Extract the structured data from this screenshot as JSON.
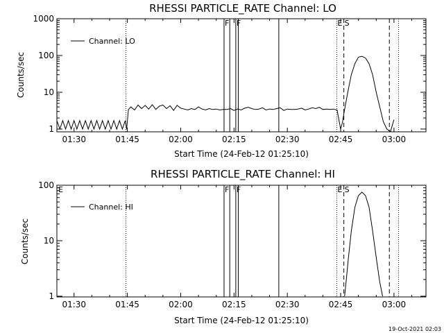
{
  "footer": {
    "timestamp": "19-Oct-2021 02:03"
  },
  "chart_data": [
    {
      "type": "line",
      "title": "RHESSI PARTICLE_RATE Channel: LO",
      "xlabel": "Start Time (24-Feb-12 01:25:10)",
      "ylabel": "Counts/sec",
      "xlim_minutes": [
        85.17,
        189
      ],
      "ylim": [
        0.8,
        1000
      ],
      "yscale": "log",
      "x_tick_labels": [
        "01:30",
        "01:45",
        "02:00",
        "02:15",
        "02:30",
        "02:45",
        "03:00"
      ],
      "x_tick_minutes": [
        90,
        105,
        120,
        135,
        150,
        165,
        180
      ],
      "y_tick_labels": [
        "1",
        "10",
        "100",
        "1000"
      ],
      "y_tick_values": [
        1,
        10,
        100,
        1000
      ],
      "legend": {
        "label": "Channel: LO",
        "placement": "top-left"
      },
      "markers": [
        {
          "label": "",
          "minute": 104.6,
          "style": "dotted"
        },
        {
          "label": "F",
          "minute": 132.2,
          "style": "solid"
        },
        {
          "label": "",
          "minute": 133.8,
          "style": "solid"
        },
        {
          "label": "F",
          "minute": 135.5,
          "style": "solid"
        },
        {
          "label": "",
          "minute": 136.2,
          "style": "solid"
        },
        {
          "label": "",
          "minute": 147.6,
          "style": "solid"
        },
        {
          "label": "E",
          "minute": 163.9,
          "style": "dotted"
        },
        {
          "label": "S",
          "minute": 165.9,
          "style": "dashed"
        },
        {
          "label": "",
          "minute": 178.7,
          "style": "dashed"
        },
        {
          "label": "",
          "minute": 181.3,
          "style": "dotted"
        }
      ],
      "series": [
        {
          "name": "Channel: LO",
          "x_minutes": [
            85.17,
            86,
            86.8,
            87.6,
            88.4,
            89.2,
            90,
            90.8,
            91.6,
            92.4,
            93.2,
            94,
            94.8,
            95.6,
            96.4,
            97.2,
            98,
            98.8,
            99.6,
            100.4,
            101.2,
            102,
            102.8,
            103.6,
            104.4,
            104.8,
            105.3,
            106,
            107,
            108,
            109,
            110,
            111,
            112,
            113,
            114,
            115,
            116,
            117,
            118,
            119,
            120,
            121,
            122,
            123,
            124,
            125,
            126,
            127,
            128,
            129,
            130,
            131,
            132,
            133,
            134,
            135,
            136,
            137,
            138,
            139,
            140,
            141,
            142,
            143,
            144,
            145,
            146,
            147,
            148,
            149,
            150,
            151,
            152,
            153,
            154,
            155,
            156,
            157,
            158,
            159,
            160,
            161,
            162,
            163,
            164,
            165,
            165.5,
            166,
            167,
            168,
            169,
            170,
            171,
            172,
            173,
            174,
            175,
            176,
            177,
            178,
            179,
            180
          ],
          "values": [
            1.7,
            1,
            1.7,
            1,
            1.7,
            1,
            1.7,
            1,
            1.7,
            1,
            1.7,
            1,
            1.7,
            1,
            1.7,
            1,
            1.7,
            1,
            1.7,
            1,
            1.7,
            1,
            1.7,
            1,
            1.7,
            1,
            3.4,
            4,
            3.3,
            4.5,
            3.6,
            4.4,
            3.5,
            4.6,
            3.4,
            4.2,
            4.5,
            3.6,
            4.3,
            3.2,
            4.4,
            3.7,
            3.5,
            3.3,
            3.6,
            3.4,
            4,
            3.5,
            3.3,
            3.6,
            3.4,
            3.5,
            3.3,
            3.4,
            3.4,
            3.6,
            3.2,
            3.5,
            3.3,
            3.7,
            3.9,
            3.6,
            3.4,
            3.5,
            3.8,
            3.3,
            3.5,
            3.4,
            3.6,
            3.8,
            3.2,
            3.5,
            3.4,
            3.4,
            3.5,
            3.7,
            3.3,
            3.5,
            3.8,
            3.6,
            3.9,
            3.4,
            3.5,
            3.4,
            3.5,
            3.3,
            1,
            1.5,
            3,
            10,
            30,
            60,
            90,
            95,
            85,
            60,
            30,
            10,
            4,
            1.6,
            1,
            0.85,
            1.8
          ]
        }
      ]
    },
    {
      "type": "line",
      "title": "RHESSI PARTICLE_RATE Channel: HI",
      "xlabel": "Start Time (24-Feb-12 01:25:10)",
      "ylabel": "Counts/sec",
      "xlim_minutes": [
        85.17,
        189
      ],
      "ylim": [
        1,
        100
      ],
      "yscale": "log",
      "x_tick_labels": [
        "01:30",
        "01:45",
        "02:00",
        "02:15",
        "02:30",
        "02:45",
        "03:00"
      ],
      "x_tick_minutes": [
        90,
        105,
        120,
        135,
        150,
        165,
        180
      ],
      "y_tick_labels": [
        "1",
        "10",
        "100"
      ],
      "y_tick_values": [
        1,
        10,
        100
      ],
      "legend": {
        "label": "Channel: HI",
        "placement": "top-left"
      },
      "markers": [
        {
          "label": "E",
          "minute": 85.4,
          "style": "none"
        },
        {
          "label": "",
          "minute": 104.6,
          "style": "dotted"
        },
        {
          "label": "F",
          "minute": 132.2,
          "style": "solid"
        },
        {
          "label": "",
          "minute": 133.8,
          "style": "solid"
        },
        {
          "label": "F",
          "minute": 135.5,
          "style": "solid"
        },
        {
          "label": "",
          "minute": 136.2,
          "style": "solid"
        },
        {
          "label": "",
          "minute": 147.6,
          "style": "solid"
        },
        {
          "label": "E",
          "minute": 163.9,
          "style": "dotted"
        },
        {
          "label": "S",
          "minute": 165.9,
          "style": "dashed"
        },
        {
          "label": "",
          "minute": 178.7,
          "style": "dashed"
        },
        {
          "label": "",
          "minute": 181.3,
          "style": "dotted"
        }
      ],
      "series": [
        {
          "name": "Channel: HI",
          "x_minutes": [
            166.1,
            166.6,
            167.2,
            168,
            169,
            170,
            171,
            172,
            173,
            174,
            175,
            176,
            176.8
          ],
          "values": [
            1,
            2,
            5,
            15,
            40,
            65,
            75,
            65,
            40,
            15,
            5,
            1.8,
            1
          ]
        }
      ]
    }
  ]
}
